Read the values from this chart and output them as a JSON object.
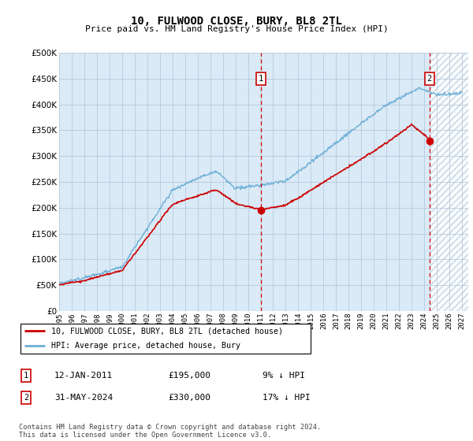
{
  "title": "10, FULWOOD CLOSE, BURY, BL8 2TL",
  "subtitle": "Price paid vs. HM Land Registry's House Price Index (HPI)",
  "ylim": [
    0,
    500000
  ],
  "yticks": [
    0,
    50000,
    100000,
    150000,
    200000,
    250000,
    300000,
    350000,
    400000,
    450000,
    500000
  ],
  "xlim_start": 1995.0,
  "xlim_end": 2027.5,
  "xtick_years": [
    1995,
    1996,
    1997,
    1998,
    1999,
    2000,
    2001,
    2002,
    2003,
    2004,
    2005,
    2006,
    2007,
    2008,
    2009,
    2010,
    2011,
    2012,
    2013,
    2014,
    2015,
    2016,
    2017,
    2018,
    2019,
    2020,
    2021,
    2022,
    2023,
    2024,
    2025,
    2026,
    2027
  ],
  "hpi_color": "#6baed6",
  "price_color": "#cc0000",
  "marker1_x": 2011.04,
  "marker1_y": 195000,
  "marker2_x": 2024.42,
  "marker2_y": 330000,
  "legend_label_price": "10, FULWOOD CLOSE, BURY, BL8 2TL (detached house)",
  "legend_label_hpi": "HPI: Average price, detached house, Bury",
  "footer": "Contains HM Land Registry data © Crown copyright and database right 2024.\nThis data is licensed under the Open Government Licence v3.0.",
  "bg_color": "#daeaf6",
  "grid_color": "#b0c4d8",
  "future_start": 2024.42,
  "hatch_color": "#b8cfe0"
}
